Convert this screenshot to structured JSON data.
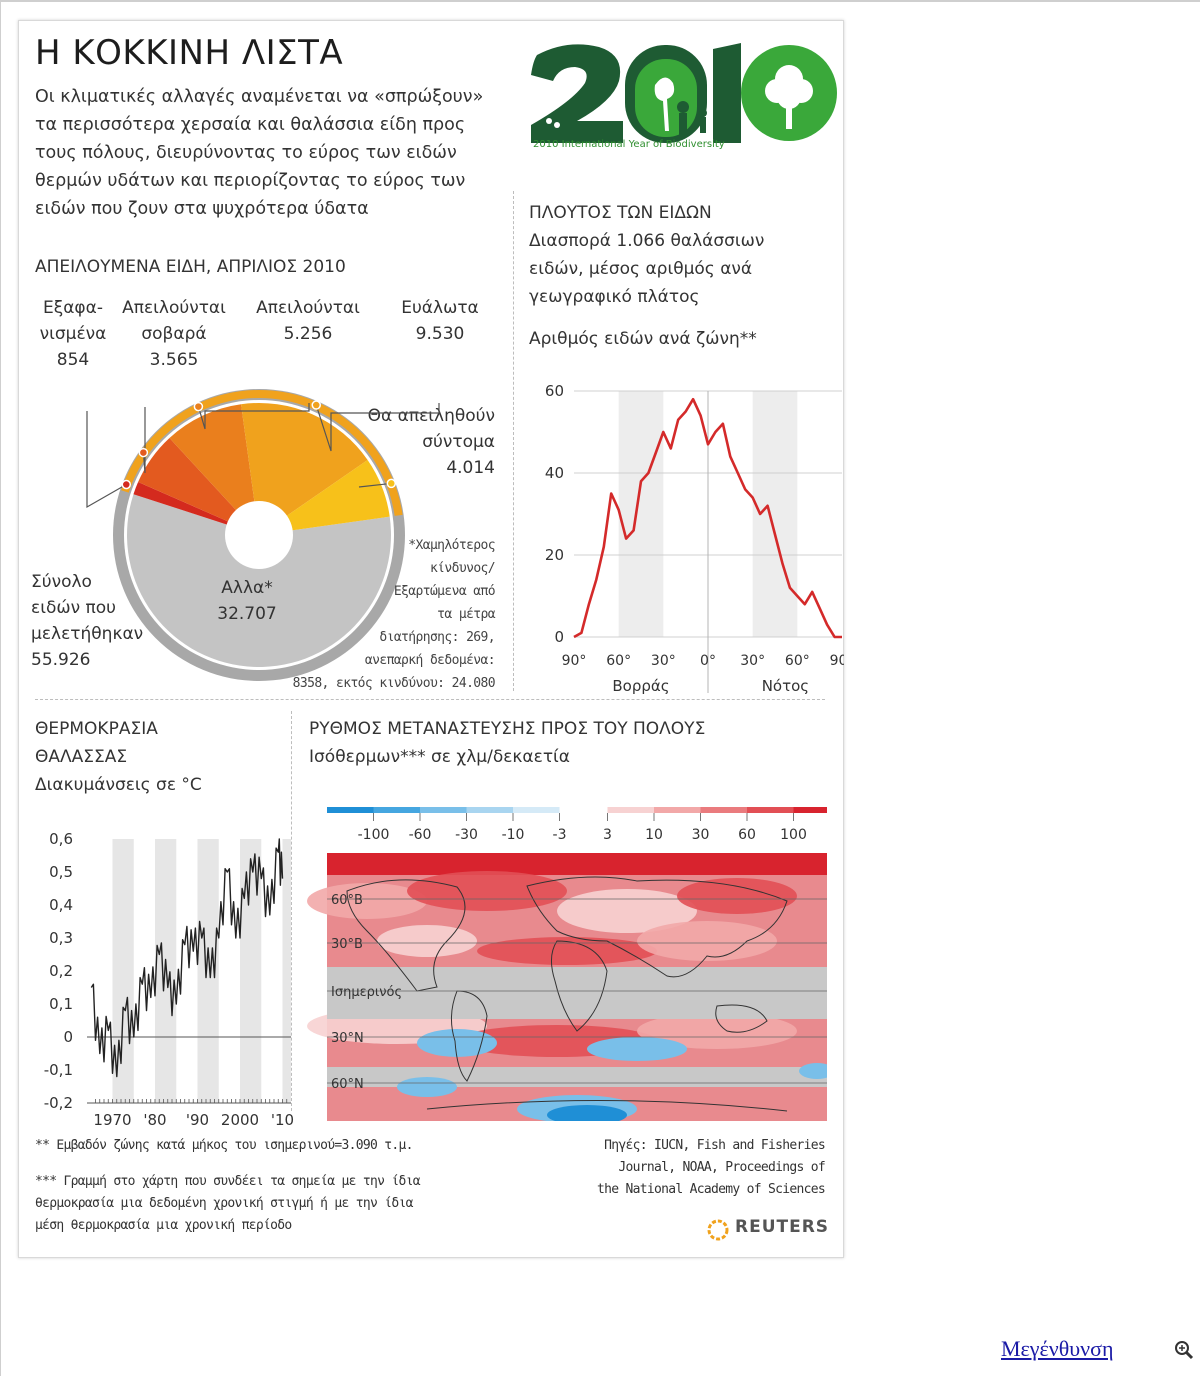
{
  "title": "Η ΚΟΚΚΙΝΗ ΛΙΣΤΑ",
  "intro": [
    "Οι κλιματικές αλλαγές αναμένεται να «σπρώξουν»",
    "τα περισσότερα χερσαία και θαλάσσια είδη προς",
    "τους πόλους, διευρύνοντας το εύρος των ειδών",
    "θερμών υδάτων και περιορίζοντας το εύρος των",
    "ειδών που ζουν στα ψυχρότερα ύδατα"
  ],
  "logo": {
    "text": "2010",
    "caption": "2010 International Year of Biodiversity",
    "colors": {
      "dark": "#1e5b33",
      "bright": "#3aa83a",
      "white": "#ffffff"
    }
  },
  "threatened": {
    "section_title": "ΑΠΕΙΛΟΥΜΕΝΑ ΕΙΔΗ, ΑΠΡΙΛΙΟΣ 2010",
    "categories": [
      {
        "label_lines": [
          "Εξαφα-",
          "νισμένα"
        ],
        "value": "854",
        "numeric": 854,
        "color": "#d42a1e"
      },
      {
        "label_lines": [
          "Απειλούνται",
          "σοβαρά"
        ],
        "value": "3.565",
        "numeric": 3565,
        "color": "#e35a1f"
      },
      {
        "label_lines": [
          "Απειλούνται"
        ],
        "value": "5.256",
        "numeric": 5256,
        "color": "#ea7f1d"
      },
      {
        "label_lines": [
          "Ευάλωτα"
        ],
        "value": "9.530",
        "numeric": 9530,
        "color": "#f0a21d"
      },
      {
        "label_lines": [
          "Θα απειληθούν",
          "σύντομα"
        ],
        "value": "4.014",
        "numeric": 4014,
        "color": "#f7c11a"
      },
      {
        "label_lines": [
          "Αλλα*"
        ],
        "value": "32.707",
        "numeric": 32707,
        "color": "#c4c4c4"
      }
    ],
    "total_lines": [
      "Σύνολο",
      "ειδών που",
      "μελετήθηκαν"
    ],
    "total_value": "55.926",
    "note": [
      "*Χαμηλότερος",
      "κίνδυνος/",
      "Εξαρτώμενα από",
      "τα μέτρα",
      "διατήρησης: 269,",
      "ανεπαρκή δεδομένα:",
      "8358, εκτός κινδύνου: 24.080"
    ]
  },
  "richness": {
    "section_title": "ΠΛΟΥΤΟΣ ΤΩΝ ΕΙΔΩΝ",
    "subtitle": [
      "Διασπορά 1.066 θαλάσσιων",
      "ειδών, μέσος αριθμός ανά",
      "γεωγραφικό πλάτος"
    ],
    "chart_title": "Αριθμός ειδών ανά ζώνη**",
    "x_ticks": [
      "90°",
      "60°",
      "30°",
      "0°",
      "30°",
      "60°",
      "90°"
    ],
    "x_groups": [
      "Βορράς",
      "Νότος"
    ],
    "y_ticks": [
      "60",
      "40",
      "20",
      "0"
    ]
  },
  "temperature": {
    "section_title": [
      "ΘΕΡΜΟΚΡΑΣΙΑ",
      "ΘΑΛΑΣΣΑΣ"
    ],
    "subtitle": "Διακυμάνσεις σε °C",
    "y_ticks": [
      "0,6",
      "0,5",
      "0,4",
      "0,3",
      "0,2",
      "0,1",
      "0",
      "-0,1",
      "-0,2"
    ],
    "x_ticks": [
      "1970",
      "'80",
      "'90",
      "2000",
      "'10"
    ]
  },
  "migration": {
    "section_title": "ΡΥΘΜΟΣ ΜΕΤΑΝΑΣΤΕΥΣΗΣ ΠΡΟΣ ΤΟΥ ΠΟΛΟΥΣ",
    "subtitle": "Ισόθερμων*** σε χλμ/δεκαετία",
    "scale_labels": [
      "-100",
      "-60",
      "-30",
      "-10",
      "-3",
      "3",
      "10",
      "30",
      "60",
      "100"
    ],
    "neg_colors": [
      "#1f8fd6",
      "#45a6e0",
      "#79bfe9",
      "#a9d5f0",
      "#d5eaf7"
    ],
    "pos_colors": [
      "#f7d2d2",
      "#f2a8a8",
      "#ea7b7e",
      "#e24f55",
      "#d8232e"
    ],
    "lat_labels": [
      "60°Β",
      "30°Β",
      "Ισημερινός",
      "30°Ν",
      "60°Ν"
    ]
  },
  "chart_data": [
    {
      "type": "pie",
      "title": "ΑΠΕΙΛΟΥΜΕΝΑ ΕΙΔΗ, ΑΠΡΙΛΙΟΣ 2010",
      "categories": [
        "Εξαφανισμένα",
        "Απειλούνται σοβαρά",
        "Απειλούνται",
        "Ευάλωτα",
        "Θα απειληθούν σύντομα",
        "Αλλα*"
      ],
      "values": [
        854,
        3565,
        5256,
        9530,
        4014,
        32707
      ]
    },
    {
      "type": "line",
      "title": "Αριθμός ειδών ανά ζώνη**",
      "xlabel": "",
      "ylabel": "",
      "x": [
        90,
        85,
        80,
        75,
        70,
        65,
        60,
        55,
        50,
        45,
        40,
        35,
        30,
        25,
        20,
        15,
        10,
        5,
        0,
        -5,
        -10,
        -15,
        -20,
        -25,
        -30,
        -35,
        -40,
        -45,
        -50,
        -55,
        -60,
        -65,
        -70,
        -75,
        -80,
        -85,
        -90
      ],
      "series": [
        {
          "values": [
            0,
            1,
            8,
            14,
            22,
            35,
            31,
            24,
            26,
            38,
            40,
            45,
            50,
            46,
            53,
            55,
            58,
            54,
            47,
            50,
            52,
            44,
            40,
            36,
            34,
            30,
            32,
            25,
            18,
            12,
            10,
            8,
            11,
            7,
            3,
            0,
            0
          ]
        }
      ],
      "ylim": [
        0,
        60
      ],
      "xlim": [
        90,
        -90
      ]
    },
    {
      "type": "line",
      "title": "Διακυμάνσεις σε °C",
      "x": [
        1965,
        1967,
        1969,
        1971,
        1973,
        1975,
        1977,
        1979,
        1981,
        1983,
        1985,
        1987,
        1989,
        1991,
        1993,
        1995,
        1997,
        1999,
        2001,
        2003,
        2005,
        2007,
        2009,
        2010
      ],
      "series": [
        {
          "values": [
            0.15,
            -0.05,
            0.02,
            -0.12,
            0.08,
            0.0,
            0.16,
            0.12,
            0.25,
            0.15,
            0.1,
            0.28,
            0.26,
            0.3,
            0.18,
            0.3,
            0.5,
            0.3,
            0.42,
            0.5,
            0.48,
            0.37,
            0.56,
            0.48
          ]
        }
      ],
      "ylim": [
        -0.2,
        0.6
      ]
    }
  ],
  "footnotes": {
    "double": [
      "**   Εμβαδόν ζώνης κατά μήκος του ισημερινού=3.090 τ.μ."
    ],
    "triple": [
      "***  Γραμμή στο χάρτη που συνδέει τα σημεία με την ίδια",
      "θερμοκρασία μια δεδομένη χρονική στιγμή ή με την ίδια",
      "μέση θερμοκρασία μια χρονική περίοδο"
    ],
    "sources": [
      "Πηγές: IUCN, Fish and Fisheries",
      "Journal, NOAA, Proceedings of",
      "the National Academy of Sciences"
    ]
  },
  "brand": "REUTERS",
  "enlarge_link": "Μεγένθυνση"
}
